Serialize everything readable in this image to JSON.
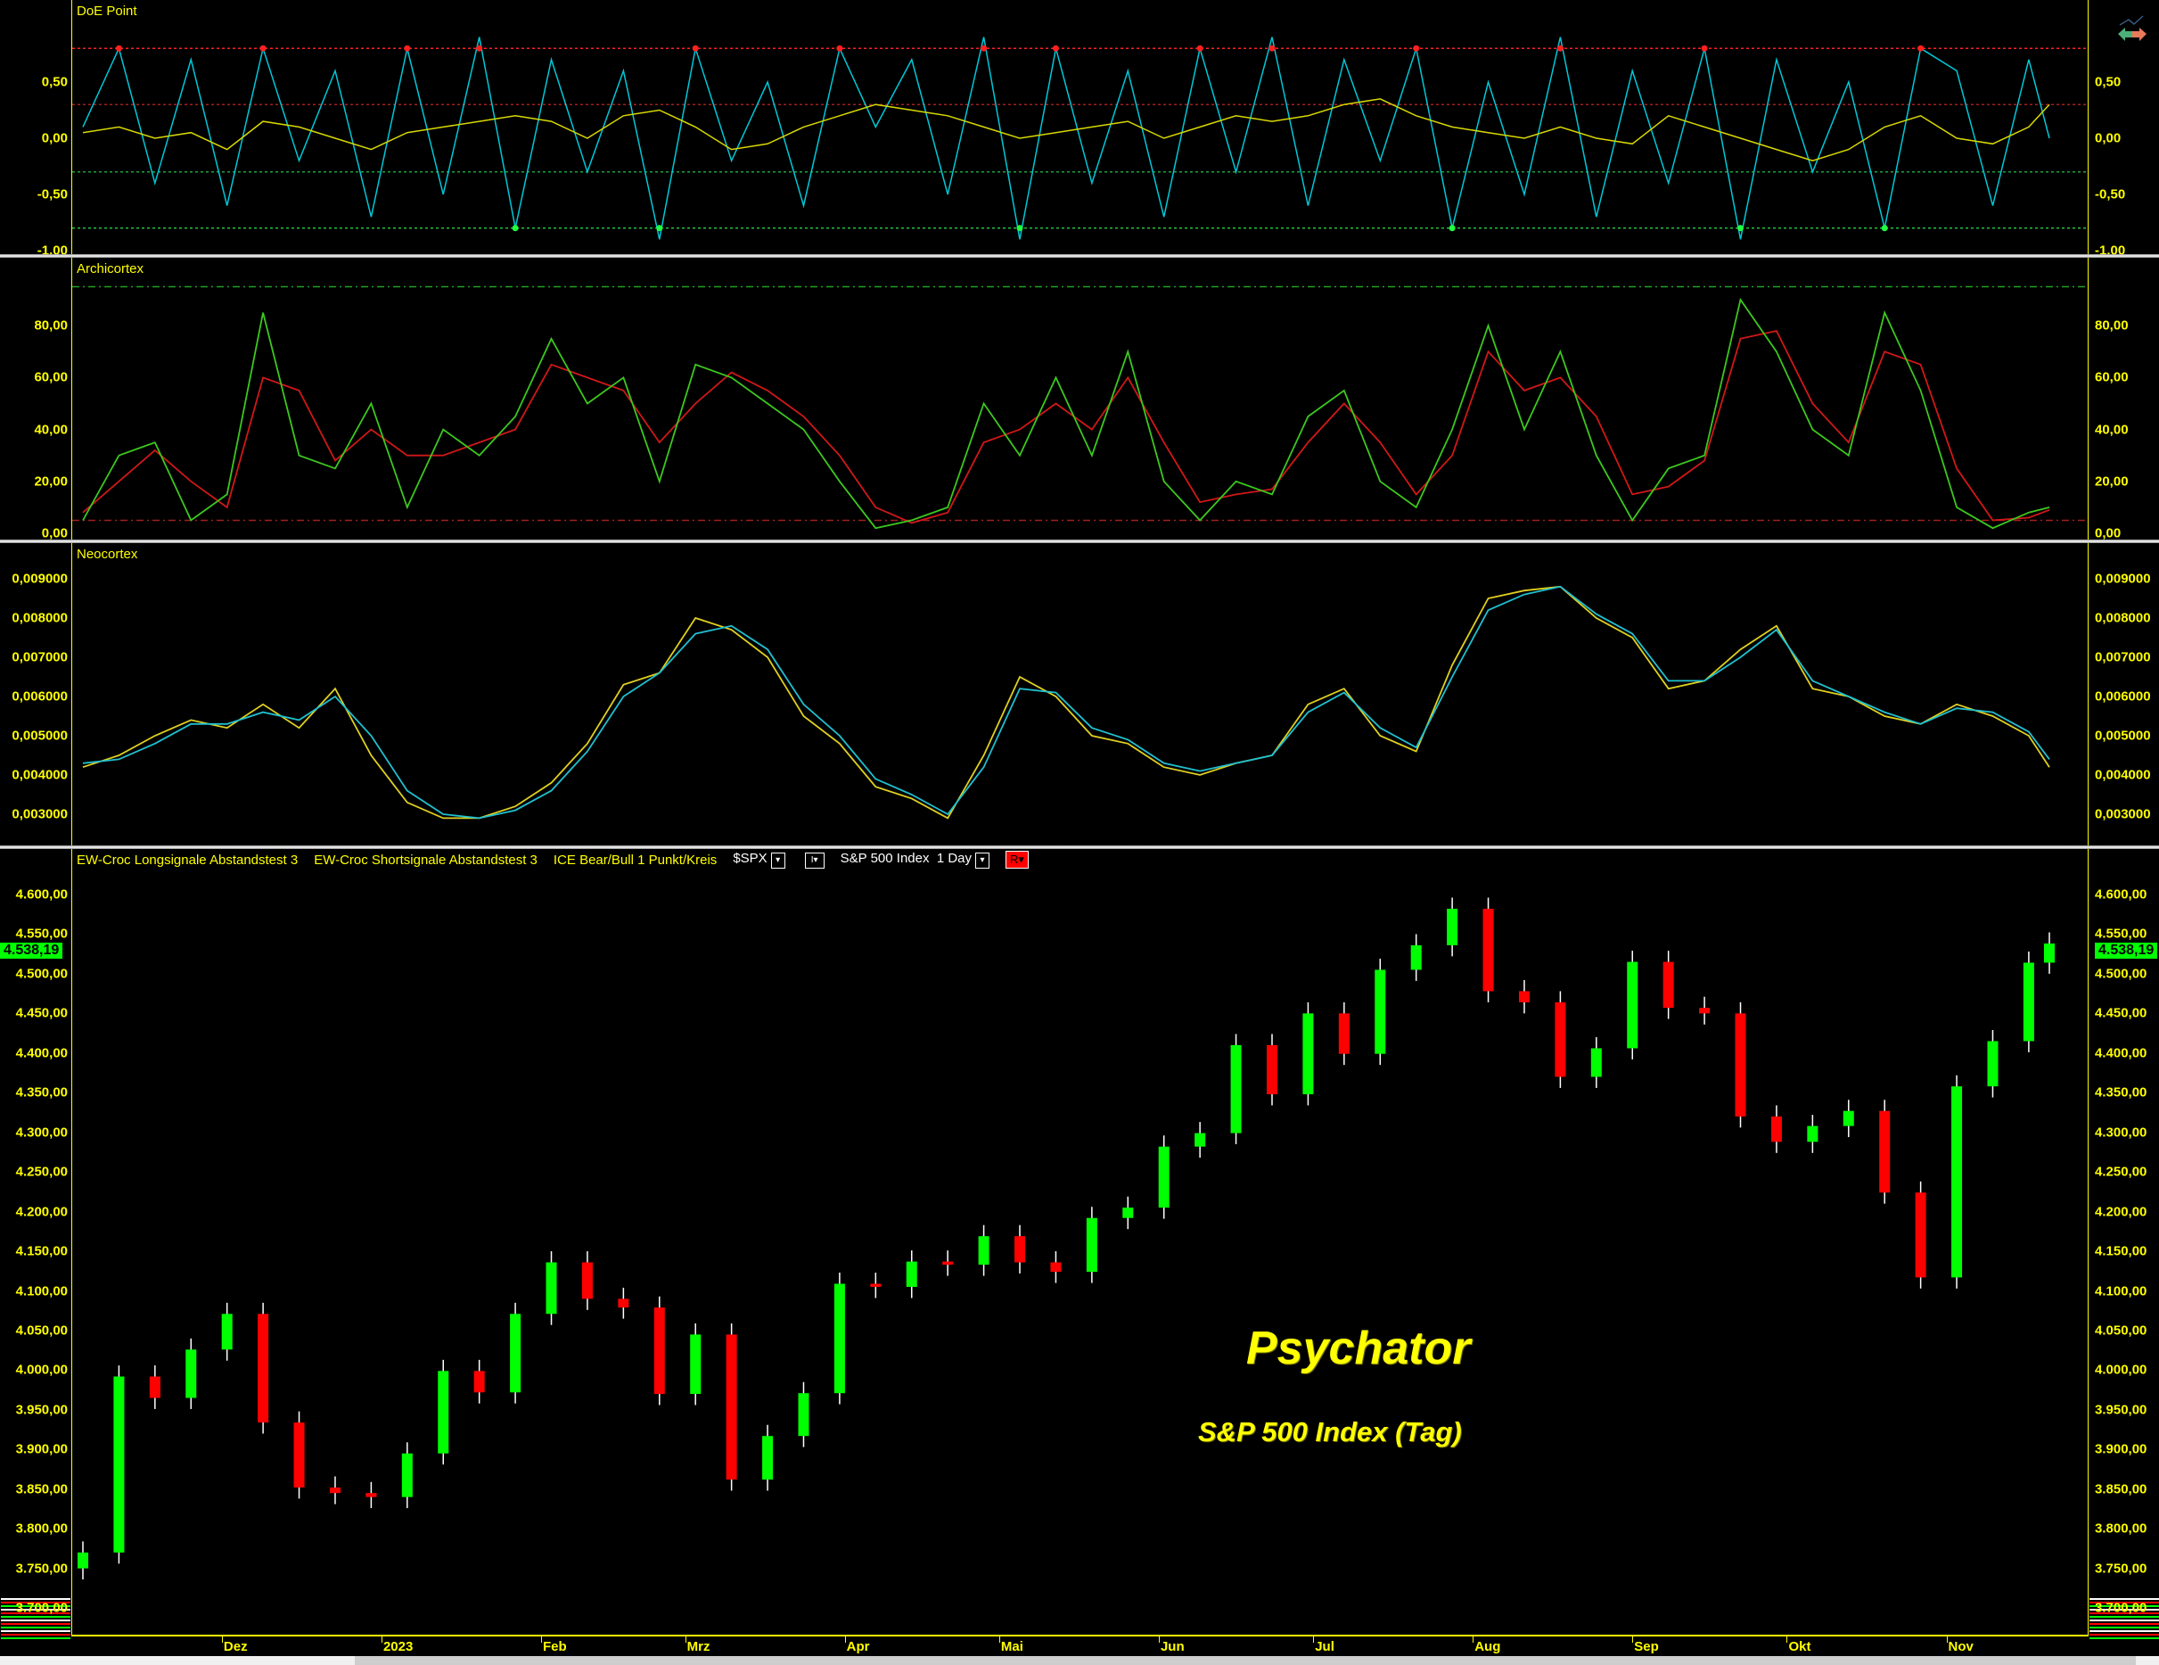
{
  "colors": {
    "background": "#000000",
    "axis": "#ffff00",
    "up": "#00ff00",
    "down": "#ff0000",
    "doe_fast": "#00c8d8",
    "doe_slow": "#d8d800",
    "archi_fast": "#3cc81e",
    "archi_slow": "#d01818",
    "neo_main": "#e0d020",
    "neo_signal": "#20c0d0"
  },
  "header": {
    "legend_long": "EW-Croc Longsignale Abstandstest 3",
    "legend_short": "EW-Croc Shortsignale Abstandstest 3",
    "legend_ice": "ICE Bear/Bull 1 Punkt/Kreis",
    "symbol": "$SPX",
    "symbol_dropdown": "▾",
    "style_label": "I",
    "style_dropdown": "▾",
    "instrument": "S&P 500 Index",
    "interval": "1 Day",
    "interval_dropdown": "▾",
    "r_button": "R▾"
  },
  "brand": {
    "title": "Psychator",
    "subtitle": "S&P 500 Index (Tag)"
  },
  "last_price_label": "4.538,19",
  "x_axis": {
    "ticks": [
      {
        "date": "2022-12-01",
        "label": "Dez"
      },
      {
        "date": "2023-01-01",
        "label": "2023"
      },
      {
        "date": "2023-02-01",
        "label": "Feb"
      },
      {
        "date": "2023-03-01",
        "label": "Mrz"
      },
      {
        "date": "2023-04-01",
        "label": "Apr"
      },
      {
        "date": "2023-05-01",
        "label": "Mai"
      },
      {
        "date": "2023-06-01",
        "label": "Jun"
      },
      {
        "date": "2023-07-01",
        "label": "Jul"
      },
      {
        "date": "2023-08-01",
        "label": "Aug"
      },
      {
        "date": "2023-09-01",
        "label": "Sep"
      },
      {
        "date": "2023-10-01",
        "label": "Okt"
      },
      {
        "date": "2023-11-01",
        "label": "Nov"
      }
    ]
  },
  "chart_data": [
    {
      "type": "line",
      "title": "DoE Point",
      "ylim": [
        -1.0,
        1.0
      ],
      "levels": [
        0.8,
        0.3,
        -0.3,
        -0.8
      ],
      "y_ticks": [
        {
          "value": 0.5,
          "label": "0,50"
        },
        {
          "value": 0,
          "label": "0,00"
        },
        {
          "value": -0.5,
          "label": "-0,50"
        },
        {
          "value": -1.0,
          "label": "-1,00"
        }
      ],
      "series": [
        {
          "key": "fast",
          "values": [
            0.1,
            0.8,
            -0.4,
            0.7,
            -0.6,
            0.8,
            -0.2,
            0.6,
            -0.7,
            0.8,
            -0.5,
            0.9,
            -0.8,
            0.7,
            -0.3,
            0.6,
            -0.9,
            0.8,
            -0.2,
            0.5,
            -0.6,
            0.8,
            0.1,
            0.7,
            -0.5,
            0.9,
            -0.9,
            0.8,
            -0.4,
            0.6,
            -0.7,
            0.8,
            -0.3,
            0.9,
            -0.6,
            0.7,
            -0.2,
            0.8,
            -0.8,
            0.5,
            -0.5,
            0.9,
            -0.7,
            0.6,
            -0.4,
            0.8,
            -0.9,
            0.7,
            -0.3,
            0.5,
            -0.8,
            0.8,
            0.6,
            -0.6,
            0.7,
            0.0
          ]
        },
        {
          "key": "slow",
          "values": [
            0.05,
            0.1,
            0.0,
            0.05,
            -0.1,
            0.15,
            0.1,
            0.0,
            -0.1,
            0.05,
            0.1,
            0.15,
            0.2,
            0.15,
            0.0,
            0.2,
            0.25,
            0.1,
            -0.1,
            -0.05,
            0.1,
            0.2,
            0.3,
            0.25,
            0.2,
            0.1,
            0.0,
            0.05,
            0.1,
            0.15,
            0.0,
            0.1,
            0.2,
            0.15,
            0.2,
            0.3,
            0.35,
            0.2,
            0.1,
            0.05,
            0.0,
            0.1,
            0.0,
            -0.05,
            0.2,
            0.1,
            0.0,
            -0.1,
            -0.2,
            -0.1,
            0.1,
            0.2,
            0.0,
            -0.05,
            0.1,
            0.3
          ]
        }
      ]
    },
    {
      "type": "line",
      "title": "Archicortex",
      "ylim": [
        0,
        100
      ],
      "levels": [
        95,
        5
      ],
      "y_ticks": [
        {
          "value": 0,
          "label": "0,00"
        },
        {
          "value": 20,
          "label": "20,00"
        },
        {
          "value": 40,
          "label": "40,00"
        },
        {
          "value": 60,
          "label": "60,00"
        },
        {
          "value": 80,
          "label": "80,00"
        }
      ],
      "series": [
        {
          "key": "fast",
          "values": [
            5,
            30,
            35,
            5,
            15,
            85,
            30,
            25,
            50,
            10,
            40,
            30,
            45,
            75,
            50,
            60,
            20,
            65,
            60,
            50,
            40,
            20,
            2,
            5,
            10,
            50,
            30,
            60,
            30,
            70,
            20,
            5,
            20,
            15,
            45,
            55,
            20,
            10,
            40,
            80,
            40,
            70,
            30,
            5,
            25,
            30,
            90,
            70,
            40,
            30,
            85,
            55,
            10,
            2,
            8,
            10
          ]
        },
        {
          "key": "slow",
          "values": [
            8,
            20,
            32,
            20,
            10,
            60,
            55,
            28,
            40,
            30,
            30,
            35,
            40,
            65,
            60,
            55,
            35,
            50,
            62,
            55,
            45,
            30,
            10,
            4,
            8,
            35,
            40,
            50,
            40,
            60,
            35,
            12,
            15,
            17,
            35,
            50,
            35,
            15,
            30,
            70,
            55,
            60,
            45,
            15,
            18,
            28,
            75,
            78,
            50,
            35,
            70,
            65,
            25,
            5,
            6,
            9
          ]
        }
      ]
    },
    {
      "type": "line",
      "title": "Neocortex",
      "ylim": [
        0.0027,
        0.0093
      ],
      "y_ticks": [
        {
          "value": 0.003,
          "label": "0,003000"
        },
        {
          "value": 0.004,
          "label": "0,004000"
        },
        {
          "value": 0.005,
          "label": "0,005000"
        },
        {
          "value": 0.006,
          "label": "0,006000"
        },
        {
          "value": 0.007,
          "label": "0,007000"
        },
        {
          "value": 0.008,
          "label": "0,008000"
        },
        {
          "value": 0.009,
          "label": "0,009000"
        }
      ],
      "series": [
        {
          "key": "main",
          "values": [
            0.0042,
            0.0045,
            0.005,
            0.0054,
            0.0052,
            0.0058,
            0.0052,
            0.0062,
            0.0045,
            0.0033,
            0.0029,
            0.0029,
            0.0032,
            0.0038,
            0.0048,
            0.0063,
            0.0066,
            0.008,
            0.0077,
            0.007,
            0.0055,
            0.0048,
            0.0037,
            0.0034,
            0.0029,
            0.0045,
            0.0065,
            0.006,
            0.005,
            0.0048,
            0.0042,
            0.004,
            0.0043,
            0.0045,
            0.0058,
            0.0062,
            0.005,
            0.0046,
            0.0068,
            0.0085,
            0.0087,
            0.0088,
            0.008,
            0.0075,
            0.0062,
            0.0064,
            0.0072,
            0.0078,
            0.0062,
            0.006,
            0.0055,
            0.0053,
            0.0058,
            0.0055,
            0.005,
            0.0042
          ]
        },
        {
          "key": "signal",
          "values": [
            0.0043,
            0.0044,
            0.0048,
            0.0053,
            0.0053,
            0.0056,
            0.0054,
            0.006,
            0.005,
            0.0036,
            0.003,
            0.0029,
            0.0031,
            0.0036,
            0.0046,
            0.006,
            0.0066,
            0.0076,
            0.0078,
            0.0072,
            0.0058,
            0.005,
            0.0039,
            0.0035,
            0.003,
            0.0042,
            0.0062,
            0.0061,
            0.0052,
            0.0049,
            0.0043,
            0.0041,
            0.0043,
            0.0045,
            0.0056,
            0.0061,
            0.0052,
            0.0047,
            0.0065,
            0.0082,
            0.0086,
            0.0088,
            0.0081,
            0.0076,
            0.0064,
            0.0064,
            0.007,
            0.0077,
            0.0064,
            0.006,
            0.0056,
            0.0053,
            0.0057,
            0.0056,
            0.0051,
            0.0044
          ]
        }
      ]
    },
    {
      "type": "candlestick",
      "title": "S&P 500 Index",
      "ylim": [
        3690,
        4625
      ],
      "last": 4538.19,
      "y_ticks": [
        3700,
        3750,
        3800,
        3850,
        3900,
        3950,
        4000,
        4050,
        4100,
        4150,
        4200,
        4250,
        4300,
        4350,
        4400,
        4450,
        4500,
        4550,
        4600
      ],
      "y_tick_labels": [
        "3.700,00",
        "3.750,00",
        "3.800,00",
        "3.850,00",
        "3.900,00",
        "3.950,00",
        "4.000,00",
        "4.050,00",
        "4.100,00",
        "4.150,00",
        "4.200,00",
        "4.250,00",
        "4.300,00",
        "4.350,00",
        "4.400,00",
        "4.450,00",
        "4.500,00",
        "4.550,00",
        "4.600,00"
      ],
      "x": [
        "2022-11-04",
        "2022-11-11",
        "2022-11-18",
        "2022-11-25",
        "2022-12-02",
        "2022-12-09",
        "2022-12-16",
        "2022-12-23",
        "2022-12-30",
        "2023-01-06",
        "2023-01-13",
        "2023-01-20",
        "2023-01-27",
        "2023-02-03",
        "2023-02-10",
        "2023-02-17",
        "2023-02-24",
        "2023-03-03",
        "2023-03-10",
        "2023-03-17",
        "2023-03-24",
        "2023-03-31",
        "2023-04-07",
        "2023-04-14",
        "2023-04-21",
        "2023-04-28",
        "2023-05-05",
        "2023-05-12",
        "2023-05-19",
        "2023-05-26",
        "2023-06-02",
        "2023-06-09",
        "2023-06-16",
        "2023-06-23",
        "2023-06-30",
        "2023-07-07",
        "2023-07-14",
        "2023-07-21",
        "2023-07-28",
        "2023-08-04",
        "2023-08-11",
        "2023-08-18",
        "2023-08-25",
        "2023-09-01",
        "2023-09-08",
        "2023-09-15",
        "2023-09-22",
        "2023-09-29",
        "2023-10-06",
        "2023-10-13",
        "2023-10-20",
        "2023-10-27",
        "2023-11-03",
        "2023-11-10",
        "2023-11-17",
        "2023-11-21"
      ],
      "close": [
        3770,
        3992,
        3965,
        4026,
        4071,
        3934,
        3852,
        3845,
        3840,
        3895,
        3999,
        3972,
        4071,
        4136,
        4090,
        4079,
        3970,
        4045,
        3862,
        3917,
        3971,
        4109,
        4105,
        4137,
        4133,
        4169,
        4136,
        4124,
        4192,
        4205,
        4282,
        4299,
        4410,
        4348,
        4450,
        4399,
        4505,
        4536,
        4582,
        4478,
        4464,
        4370,
        4406,
        4515,
        4457,
        4450,
        4320,
        4288,
        4308,
        4327,
        4224,
        4117,
        4358,
        4415,
        4514,
        4538.19
      ]
    }
  ]
}
